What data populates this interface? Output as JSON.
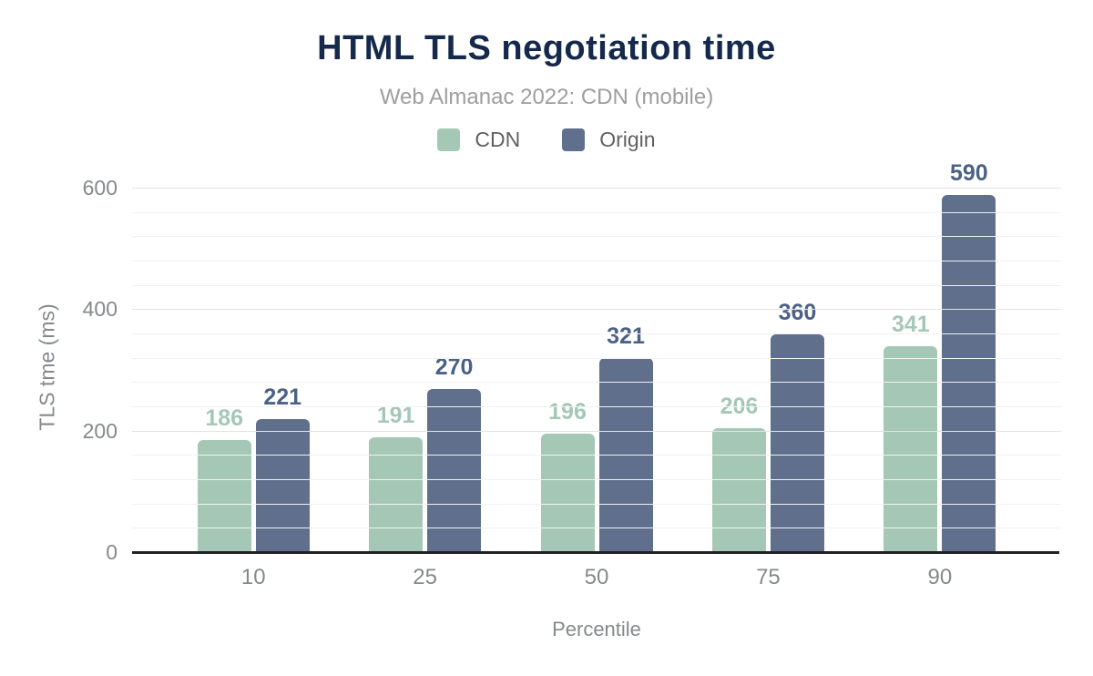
{
  "title": "HTML TLS negotiation time",
  "subtitle": "Web Almanac 2022: CDN (mobile)",
  "colors": {
    "background": "#ffffff",
    "title": "#14294b",
    "subtitle": "#9e9e9e",
    "legend_text": "#616161",
    "axis_text": "#85898c",
    "axis_line": "#202124",
    "grid_major": "#e3e3e3",
    "grid_minor": "#f1f1f1"
  },
  "chart_data": {
    "type": "bar",
    "title": "HTML TLS negotiation time",
    "subtitle": "Web Almanac 2022: CDN (mobile)",
    "categories": [
      "10",
      "25",
      "50",
      "75",
      "90"
    ],
    "series": [
      {
        "name": "CDN",
        "color": "#a5c8b6",
        "label_color": "#a5c8b6",
        "values": [
          186,
          191,
          196,
          206,
          341
        ]
      },
      {
        "name": "Origin",
        "color": "#5f6f8c",
        "label_color": "#4c6186",
        "values": [
          221,
          270,
          321,
          360,
          590
        ]
      }
    ],
    "xlabel": "Percentile",
    "ylabel": "TLS tme (ms)",
    "ylim": [
      0,
      612
    ],
    "yticks": [
      0,
      200,
      400,
      600
    ],
    "minor_grid_step": 40,
    "grid": "horizontal",
    "legend_position": "top",
    "data_labels": true
  }
}
